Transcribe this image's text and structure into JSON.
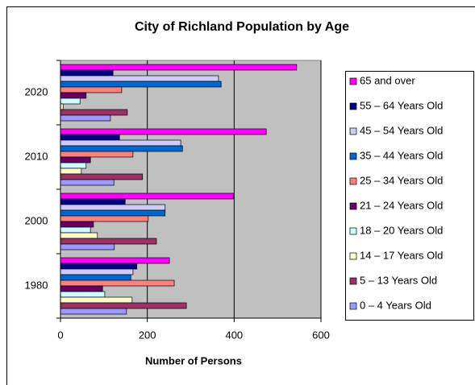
{
  "chart_data": {
    "type": "hbar",
    "title": "City of Richland Population by Age",
    "x_label": "Number of Persons",
    "categories": [
      "1980",
      "2000",
      "2010",
      "2020"
    ],
    "xlim": [
      0,
      600
    ],
    "xticks": [
      0,
      200,
      400,
      600
    ],
    "grid": true,
    "series": [
      {
        "name": "65 and over",
        "color": "#ff00ff",
        "values": [
          251,
          398,
          474,
          544
        ]
      },
      {
        "name": "55 – 64 Years Old",
        "color": "#000080",
        "values": [
          176,
          149,
          136,
          121
        ]
      },
      {
        "name": "45 – 54 Years Old",
        "color": "#ccccff",
        "values": [
          167,
          241,
          277,
          364
        ]
      },
      {
        "name": "35 – 44 Years Old",
        "color": "#0066cc",
        "values": [
          162,
          241,
          281,
          370
        ]
      },
      {
        "name": "25 – 34 Years Old",
        "color": "#ff8080",
        "values": [
          262,
          202,
          167,
          141
        ]
      },
      {
        "name": "21 – 24 Years Old",
        "color": "#660066",
        "values": [
          97,
          76,
          69,
          59
        ]
      },
      {
        "name": "18 – 20 Years Old",
        "color": "#ccffff",
        "values": [
          102,
          69,
          59,
          45
        ]
      },
      {
        "name": "14 – 17 Years Old",
        "color": "#ffffcc",
        "values": [
          165,
          85,
          48,
          6
        ]
      },
      {
        "name": "5 – 13 Years Old",
        "color": "#993366",
        "values": [
          290,
          221,
          189,
          154
        ]
      },
      {
        "name": "0 – 4 Years Old",
        "color": "#9999ff",
        "values": [
          152,
          124,
          123,
          115
        ]
      }
    ]
  }
}
